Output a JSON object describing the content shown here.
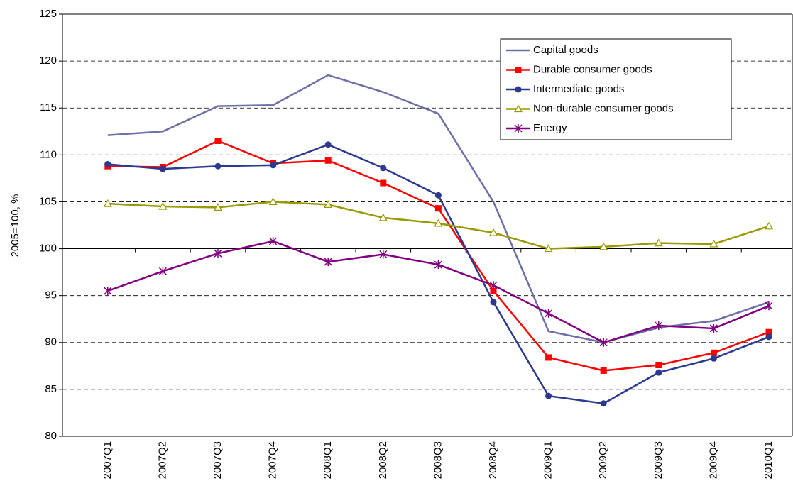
{
  "chart_data": {
    "type": "line",
    "y_label": "2005=100, %",
    "categories": [
      "2007Q1",
      "2007Q2",
      "2007Q3",
      "2007Q4",
      "2008Q1",
      "2008Q2",
      "2008Q3",
      "2008Q4",
      "2009Q1",
      "2009Q2",
      "2009Q3",
      "2009Q4",
      "2010Q1"
    ],
    "series": [
      {
        "name": "Capital goods",
        "color": "#6e6fa6",
        "marker": "none",
        "values": [
          112.1,
          112.5,
          115.2,
          115.3,
          118.5,
          116.7,
          114.4,
          105.0,
          91.2,
          90.0,
          91.6,
          92.3,
          94.3
        ]
      },
      {
        "name": "Durable consumer goods",
        "color": "#ff0000",
        "marker": "square",
        "values": [
          108.8,
          108.7,
          111.5,
          109.1,
          109.4,
          107.0,
          104.3,
          95.5,
          88.4,
          87.0,
          87.6,
          88.9,
          91.1
        ]
      },
      {
        "name": "Intermediate goods",
        "color": "#2b3990",
        "marker": "circle",
        "values": [
          109.0,
          108.5,
          108.8,
          108.9,
          111.1,
          108.6,
          105.7,
          94.3,
          84.3,
          83.5,
          86.8,
          88.3,
          90.6
        ]
      },
      {
        "name": "Non-durable consumer goods",
        "color": "#999900",
        "marker": "triangle",
        "values": [
          104.8,
          104.5,
          104.4,
          105.0,
          104.7,
          103.3,
          102.7,
          101.7,
          100.0,
          100.2,
          100.6,
          100.5,
          102.4
        ]
      },
      {
        "name": "Energy",
        "color": "#800080",
        "marker": "star",
        "values": [
          95.5,
          97.6,
          99.5,
          100.8,
          98.6,
          99.4,
          98.3,
          96.1,
          93.1,
          90.0,
          91.8,
          91.5,
          93.9
        ]
      }
    ],
    "ylim": [
      80,
      125
    ],
    "yticks": [
      80,
      85,
      90,
      95,
      100,
      105,
      110,
      115,
      120,
      125
    ],
    "x_axis_at": 100,
    "grid": true,
    "legend": "upper right"
  }
}
